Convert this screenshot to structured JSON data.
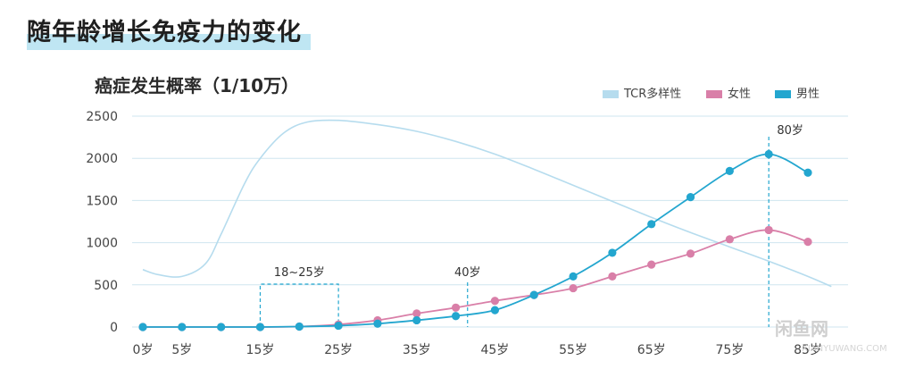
{
  "header": {
    "title": "随年龄增长免疫力的变化",
    "subtitle": "癌症发生概率（1/10万）"
  },
  "colors": {
    "tcr": "#b6dcee",
    "female": "#d97fa8",
    "male": "#23a6cf",
    "grid": "#cfe6ef",
    "axis_text": "#444444",
    "title_highlight": "#bfe6f3"
  },
  "annotations": {
    "range_label": "18~25岁",
    "age40_label": "40岁",
    "age80_label": "80岁"
  },
  "watermark": {
    "text": "闲鱼网",
    "sub": "XIANYUWANG.COM"
  },
  "chart_data": {
    "type": "line",
    "xlabel": "",
    "ylabel": "",
    "ylim": [
      0,
      2500
    ],
    "xlim": [
      0,
      90
    ],
    "y_ticks": [
      0,
      500,
      1000,
      1500,
      2000,
      2500
    ],
    "y_tick_labels": [
      "0",
      "500",
      "1000",
      "1500",
      "2000",
      "2500"
    ],
    "x_ticks": [
      0,
      5,
      15,
      25,
      35,
      45,
      55,
      65,
      75,
      85
    ],
    "x_tick_labels": [
      "0岁",
      "5岁",
      "15岁",
      "25岁",
      "35岁",
      "45岁",
      "55岁",
      "65岁",
      "75岁",
      "85岁"
    ],
    "grid": true,
    "legend_position": "top-right",
    "series": [
      {
        "name": "TCR多样性",
        "style": "smooth-line-no-markers",
        "x": [
          0,
          2,
          5,
          8,
          10,
          13,
          15,
          18,
          21,
          25,
          30,
          35,
          40,
          45,
          50,
          55,
          60,
          65,
          70,
          75,
          80,
          85,
          88
        ],
        "values": [
          680,
          620,
          600,
          750,
          1100,
          1700,
          2000,
          2300,
          2430,
          2450,
          2400,
          2320,
          2200,
          2050,
          1870,
          1680,
          1490,
          1300,
          1120,
          950,
          780,
          600,
          480
        ]
      },
      {
        "name": "女性",
        "style": "line-with-markers",
        "x": [
          0,
          5,
          10,
          15,
          20,
          25,
          30,
          35,
          40,
          45,
          50,
          55,
          60,
          65,
          70,
          75,
          80,
          85
        ],
        "values": [
          0,
          0,
          0,
          0,
          5,
          30,
          80,
          160,
          230,
          310,
          380,
          460,
          600,
          740,
          870,
          1040,
          1150,
          1010
        ]
      },
      {
        "name": "男性",
        "style": "line-with-markers",
        "x": [
          0,
          5,
          10,
          15,
          20,
          25,
          30,
          35,
          40,
          45,
          50,
          55,
          60,
          65,
          70,
          75,
          80,
          85
        ],
        "values": [
          0,
          0,
          0,
          0,
          5,
          15,
          40,
          80,
          130,
          200,
          380,
          600,
          880,
          1220,
          1540,
          1850,
          2050,
          1830
        ]
      }
    ]
  }
}
